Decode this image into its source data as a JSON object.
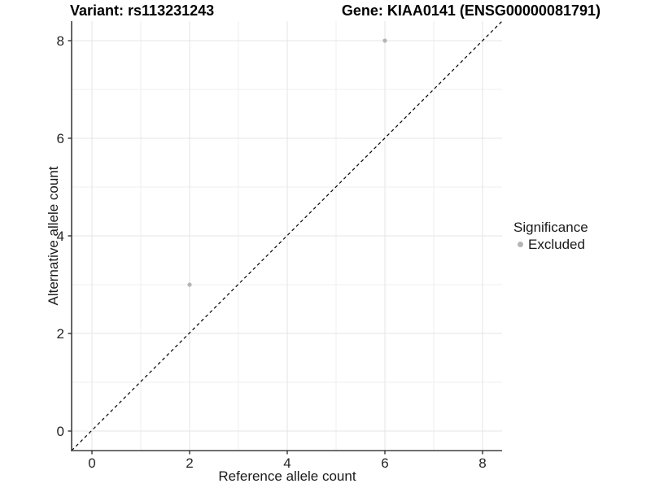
{
  "chart_data": {
    "type": "scatter",
    "title_left": "Variant: rs113231243",
    "title_right": "Gene: KIAA0141 (ENSG00000081791)",
    "xlabel": "Reference allele count",
    "ylabel": "Alternative allele count",
    "x_ticks": [
      0,
      2,
      4,
      6,
      8
    ],
    "y_ticks": [
      0,
      2,
      4,
      6,
      8
    ],
    "x_minor_gridlines": [
      1,
      3,
      5,
      7
    ],
    "y_minor_gridlines": [
      1,
      3,
      5,
      7
    ],
    "xlim": [
      -0.4,
      8.4
    ],
    "ylim": [
      -0.4,
      8.4
    ],
    "grid": "on",
    "legend_position": "right",
    "series": [
      {
        "name": "Excluded",
        "marker": "circle",
        "color": "#b5b5b5",
        "points": [
          {
            "x": 2,
            "y": 3
          },
          {
            "x": 6,
            "y": 8
          }
        ]
      }
    ],
    "reference_line": {
      "kind": "identity y=x",
      "style": "dashed",
      "color": "#000000"
    },
    "legend": {
      "title": "Significance",
      "items": [
        {
          "label": "Excluded",
          "marker": "circle",
          "color": "#b5b5b5"
        }
      ]
    }
  },
  "colors": {
    "background": "#ffffff",
    "major_grid": "#e4e4e4",
    "minor_grid": "#efefef",
    "axis_line": "#404040",
    "tick_mark": "#333333",
    "tick_label": "#262626",
    "point": "#b5b5b5",
    "dashed_line": "#000000"
  }
}
